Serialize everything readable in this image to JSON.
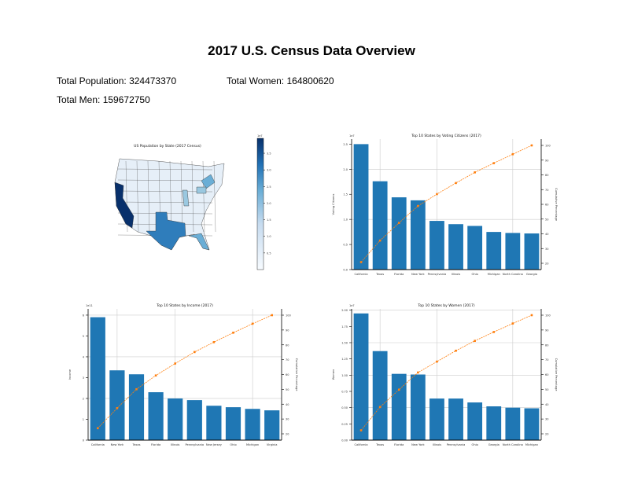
{
  "header": {
    "title": "2017 U.S. Census Data Overview",
    "total_population_label": "Total Population: 324473370",
    "total_women_label": "Total Women: 164800620",
    "total_men_label": "Total Men: 159672750"
  },
  "colors": {
    "bar": "#1f77b4",
    "line": "#ff7f0e",
    "map_low": "#f7fbff",
    "map_high": "#08306b"
  },
  "chart_data": [
    {
      "type": "map",
      "title": "US Population by State (2017 Census)",
      "colormap": "Blues",
      "colorbar_ticks": [
        "0.5",
        "1.0",
        "1.5",
        "2.0",
        "2.5",
        "3.0",
        "3.5"
      ],
      "colorbar_offset": "1e7",
      "highlighted_states": {
        "California": 3.95,
        "Texas": 2.83,
        "Florida": 2.1,
        "New York": 1.98,
        "Illinois": 1.28,
        "Pennsylvania": 1.28
      }
    },
    {
      "type": "bar",
      "title": "Top 10 States by Voting Citizens (2017)",
      "ylabel": "Voting Citizens",
      "y2label": "Cumulative Percentage",
      "offset": "1e7",
      "categories": [
        "California",
        "Texas",
        "Florida",
        "New York",
        "Pennsylvania",
        "Illinois",
        "Ohio",
        "Michigan",
        "North Carolina",
        "Georgia"
      ],
      "values": [
        2.5,
        1.76,
        1.44,
        1.38,
        0.97,
        0.905,
        0.87,
        0.75,
        0.73,
        0.72
      ],
      "ylim": [
        0,
        2.6
      ],
      "yticks": [
        "0.0",
        "0.5",
        "1.0",
        "1.5",
        "2.0",
        "2.5"
      ],
      "y2ticks": [
        "20",
        "30",
        "40",
        "50",
        "60",
        "70",
        "80",
        "90",
        "100"
      ],
      "grid": true,
      "series": [
        {
          "type": "bar"
        },
        {
          "type": "line",
          "axis": "right",
          "values": "cumulative percentage"
        }
      ]
    },
    {
      "type": "bar",
      "title": "Top 10 States by Income (2017)",
      "ylabel": "Income",
      "y2label": "Cumulative Percentage",
      "offset": "1e11",
      "categories": [
        "California",
        "New York",
        "Texas",
        "Florida",
        "Illinois",
        "Pennsylvania",
        "New Jersey",
        "Ohio",
        "Michigan",
        "Virginia"
      ],
      "values": [
        5.9,
        3.35,
        3.16,
        2.3,
        2.0,
        1.92,
        1.65,
        1.58,
        1.5,
        1.43
      ],
      "ylim": [
        0,
        6.3
      ],
      "yticks": [
        "0",
        "1",
        "2",
        "3",
        "4",
        "5",
        "6"
      ],
      "y2ticks": [
        "20",
        "30",
        "40",
        "50",
        "60",
        "70",
        "80",
        "90",
        "100"
      ],
      "grid": true
    },
    {
      "type": "bar",
      "title": "Top 10 States by Women (2017)",
      "ylabel": "Women",
      "y2label": "Cumulative Percentage",
      "offset": "1e7",
      "categories": [
        "California",
        "Texas",
        "Florida",
        "New York",
        "Illinois",
        "Pennsylvania",
        "Ohio",
        "Georgia",
        "North Carolina",
        "Michigan"
      ],
      "values": [
        1.95,
        1.37,
        1.02,
        1.01,
        0.64,
        0.64,
        0.58,
        0.52,
        0.5,
        0.49
      ],
      "ylim": [
        0,
        2.02
      ],
      "yticks": [
        "0.00",
        "0.25",
        "0.50",
        "0.75",
        "1.00",
        "1.25",
        "1.50",
        "1.75",
        "2.00"
      ],
      "y2ticks": [
        "20",
        "30",
        "40",
        "50",
        "60",
        "70",
        "80",
        "90",
        "100"
      ],
      "grid": true
    }
  ]
}
